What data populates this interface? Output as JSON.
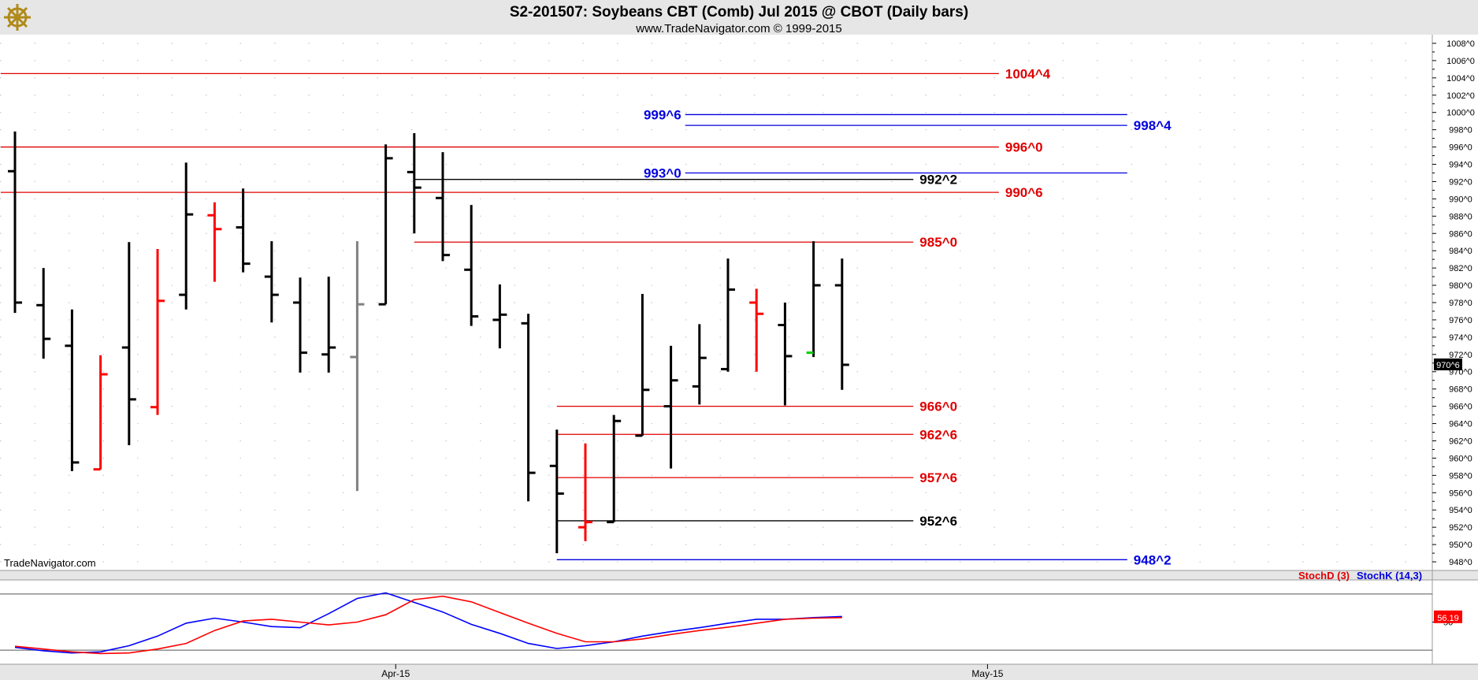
{
  "header": {
    "title": "S2-201507:  Soybeans CBT (Comb) Jul 2015 @ CBOT  (Daily bars)",
    "subtitle": "www.TradeNavigator.com © 1999-2015"
  },
  "watermark": "TradeNavigator.com",
  "logo_icon": "ship-wheel-icon",
  "colors": {
    "background": "#ffffff",
    "frame": "#e6e6e6",
    "bar_default": "#000000",
    "bar_red": "#ff0000",
    "bar_gray": "#808080",
    "line_red": "#e00000",
    "line_blue": "#0000e0",
    "line_black": "#000000",
    "label_red": "#e00000",
    "label_blue": "#0000e0",
    "stoch_d": "#ff0000",
    "stoch_k": "#0000ff",
    "price_badge_bg": "#000000",
    "stoch_badge_bg": "#ff0000"
  },
  "chart_data": [
    {
      "type": "ohlc",
      "title": "S2-201507:  Soybeans CBT (Comb) Jul 2015 @ CBOT  (Daily bars)",
      "price_format": "cents^eighths",
      "ylim": [
        947,
        1009
      ],
      "y_ticks": [
        "1008^0",
        "1006^0",
        "1004^0",
        "1002^0",
        "1000^0",
        "998^0",
        "996^0",
        "994^0",
        "992^0",
        "990^0",
        "988^0",
        "986^0",
        "984^0",
        "982^0",
        "980^0",
        "978^0",
        "976^0",
        "974^0",
        "972^0",
        "970^0",
        "968^0",
        "966^0",
        "964^0",
        "962^0",
        "960^0",
        "958^0",
        "956^0",
        "954^0",
        "952^0",
        "950^0",
        "948^0"
      ],
      "x_labels": [
        "Apr-15",
        "May-15"
      ],
      "x_label_bar_index": [
        13.35,
        34.1
      ],
      "last_price_label": "970^6",
      "bars": [
        {
          "o": 993.2,
          "h": 997.8,
          "l": 976.8,
          "c": 978.0,
          "color": "black"
        },
        {
          "o": 977.7,
          "h": 982.0,
          "l": 971.5,
          "c": 973.8,
          "color": "black"
        },
        {
          "o": 973.0,
          "h": 977.2,
          "l": 958.5,
          "c": 959.5,
          "color": "black"
        },
        {
          "o": 958.7,
          "h": 971.9,
          "l": 958.7,
          "c": 969.7,
          "color": "red"
        },
        {
          "o": 972.8,
          "h": 985.0,
          "l": 961.5,
          "c": 966.8,
          "color": "black"
        },
        {
          "o": 965.9,
          "h": 984.2,
          "l": 965.0,
          "c": 978.2,
          "color": "red"
        },
        {
          "o": 978.9,
          "h": 994.2,
          "l": 977.2,
          "c": 988.2,
          "color": "black"
        },
        {
          "o": 988.1,
          "h": 989.6,
          "l": 980.4,
          "c": 986.5,
          "color": "red"
        },
        {
          "o": 986.7,
          "h": 991.2,
          "l": 981.5,
          "c": 982.5,
          "color": "black"
        },
        {
          "o": 981.0,
          "h": 985.1,
          "l": 975.7,
          "c": 978.9,
          "color": "black"
        },
        {
          "o": 978.0,
          "h": 980.9,
          "l": 969.9,
          "c": 972.2,
          "color": "black"
        },
        {
          "o": 972.0,
          "h": 981.0,
          "l": 969.9,
          "c": 972.8,
          "color": "black"
        },
        {
          "o": 971.7,
          "h": 985.1,
          "l": 956.2,
          "c": 977.8,
          "color": "gray"
        },
        {
          "o": 977.8,
          "h": 996.3,
          "l": 977.8,
          "c": 994.7,
          "color": "black"
        },
        {
          "o": 993.1,
          "h": 997.6,
          "l": 986.0,
          "c": 991.3,
          "color": "black"
        },
        {
          "o": 990.1,
          "h": 995.4,
          "l": 982.8,
          "c": 983.5,
          "color": "black"
        },
        {
          "o": 981.8,
          "h": 989.3,
          "l": 975.3,
          "c": 976.4,
          "color": "black"
        },
        {
          "o": 976.0,
          "h": 980.1,
          "l": 972.7,
          "c": 976.6,
          "color": "black"
        },
        {
          "o": 975.6,
          "h": 976.7,
          "l": 955.0,
          "c": 958.3,
          "color": "black"
        },
        {
          "o": 959.1,
          "h": 963.3,
          "l": 949.0,
          "c": 955.9,
          "color": "black"
        },
        {
          "o": 952.0,
          "h": 961.7,
          "l": 950.4,
          "c": 952.6,
          "color": "red"
        },
        {
          "o": 952.6,
          "h": 965.0,
          "l": 952.6,
          "c": 964.3,
          "color": "black"
        },
        {
          "o": 962.6,
          "h": 979.0,
          "l": 962.6,
          "c": 967.9,
          "color": "black"
        },
        {
          "o": 966.0,
          "h": 973.0,
          "l": 958.8,
          "c": 969.0,
          "color": "black"
        },
        {
          "o": 968.3,
          "h": 975.5,
          "l": 966.2,
          "c": 971.6,
          "color": "black"
        },
        {
          "o": 970.3,
          "h": 983.1,
          "l": 970.0,
          "c": 979.5,
          "color": "black"
        },
        {
          "o": 978.0,
          "h": 979.6,
          "l": 970.0,
          "c": 976.7,
          "color": "red"
        },
        {
          "o": 975.4,
          "h": 978.0,
          "l": 966.1,
          "c": 971.8,
          "color": "black"
        },
        {
          "o": 972.2,
          "h": 985.1,
          "l": 971.7,
          "c": 980.0,
          "color": "black",
          "open_tick_color": "#00cc00"
        },
        {
          "o": 980.0,
          "h": 983.1,
          "l": 967.9,
          "c": 970.8,
          "color": "black"
        }
      ],
      "levels": [
        {
          "price": 1004.5,
          "label": "1004^4",
          "color": "red",
          "from_bar": -0.5,
          "to_bar": 34.5,
          "label_side": "right"
        },
        {
          "price": 999.75,
          "label": "999^6",
          "color": "blue",
          "from_bar": 23.5,
          "to_bar": 39.0,
          "label_side": "left"
        },
        {
          "price": 998.5,
          "label": "998^4",
          "color": "blue",
          "from_bar": 23.5,
          "to_bar": 39.0,
          "label_side": "right"
        },
        {
          "price": 996.0,
          "label": "996^0",
          "color": "red",
          "from_bar": -0.5,
          "to_bar": 34.5,
          "label_side": "right"
        },
        {
          "price": 993.0,
          "label": "993^0",
          "color": "blue",
          "from_bar": 23.5,
          "to_bar": 39.0,
          "label_side": "left"
        },
        {
          "price": 992.25,
          "label": "992^2",
          "color": "black",
          "from_bar": 14.0,
          "to_bar": 31.5,
          "label_side": "right"
        },
        {
          "price": 990.75,
          "label": "990^6",
          "color": "red",
          "from_bar": -0.5,
          "to_bar": 34.5,
          "label_side": "right"
        },
        {
          "price": 985.0,
          "label": "985^0",
          "color": "red",
          "from_bar": 14.0,
          "to_bar": 31.5,
          "label_side": "right"
        },
        {
          "price": 966.0,
          "label": "966^0",
          "color": "red",
          "from_bar": 19.0,
          "to_bar": 31.5,
          "label_side": "right"
        },
        {
          "price": 962.75,
          "label": "962^6",
          "color": "red",
          "from_bar": 19.0,
          "to_bar": 31.5,
          "label_side": "right"
        },
        {
          "price": 957.75,
          "label": "957^6",
          "color": "red",
          "from_bar": 19.0,
          "to_bar": 31.5,
          "label_side": "right"
        },
        {
          "price": 952.75,
          "label": "952^6",
          "color": "black",
          "from_bar": 19.0,
          "to_bar": 31.5,
          "label_side": "right"
        },
        {
          "price": 948.25,
          "label": "948^2",
          "color": "blue",
          "from_bar": 19.0,
          "to_bar": 39.0,
          "label_side": "right"
        }
      ]
    },
    {
      "type": "line",
      "legend": [
        "StochD (3)",
        "StochK (14,3)"
      ],
      "ylim": [
        -25,
        125
      ],
      "y_ticks": [
        "50"
      ],
      "reference_lines": [
        100,
        0
      ],
      "last_value_label": "56.19",
      "series": [
        {
          "name": "StochK (14,3)",
          "color": "blue",
          "values": [
            5,
            -1,
            -5,
            -3,
            8,
            25,
            48,
            57,
            50,
            42,
            40,
            65,
            92,
            102,
            85,
            68,
            46,
            30,
            12,
            3,
            8,
            15,
            25,
            33,
            40,
            48,
            55,
            55,
            58,
            60
          ]
        },
        {
          "name": "StochD (3)",
          "color": "red",
          "values": [
            7,
            2,
            -3,
            -6,
            -5,
            2,
            12,
            35,
            52,
            55,
            50,
            45,
            50,
            63,
            90,
            96,
            86,
            67,
            48,
            30,
            15,
            15,
            20,
            28,
            35,
            41,
            48,
            55,
            57,
            58
          ]
        }
      ]
    }
  ]
}
